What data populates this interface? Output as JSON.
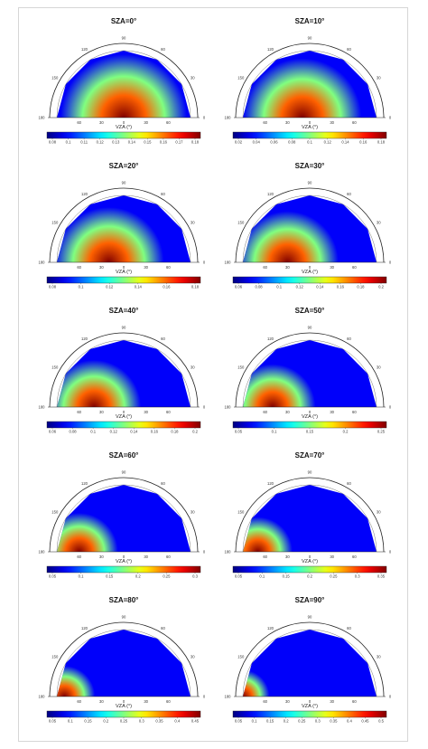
{
  "chart_data": [
    {
      "type": "heatmap",
      "title": "SZA=0°",
      "xlabel": "VZA (°)",
      "angle_ticks": [
        "90",
        "120",
        "60",
        "150",
        "30",
        "180",
        "0"
      ],
      "radial_ticks": [
        "60",
        "30",
        "0",
        "30",
        "60"
      ],
      "colorbar_ticks": [
        "0.08",
        "0.1",
        "0.11",
        "0.12",
        "0.13",
        "0.14",
        "0.15",
        "0.16",
        "0.17",
        "0.18"
      ],
      "colormap": "jet",
      "hotspot_vza": 0,
      "hotspot_side": "left"
    },
    {
      "type": "heatmap",
      "title": "SZA=10°",
      "xlabel": "VZA (°)",
      "angle_ticks": [
        "90",
        "120",
        "60",
        "150",
        "30",
        "180",
        "0"
      ],
      "radial_ticks": [
        "60",
        "30",
        "0",
        "30",
        "60"
      ],
      "colorbar_ticks": [
        "0.02",
        "0.04",
        "0.06",
        "0.08",
        "0.1",
        "0.12",
        "0.14",
        "0.16",
        "0.18"
      ],
      "colormap": "jet",
      "hotspot_vza": 10,
      "hotspot_side": "left"
    },
    {
      "type": "heatmap",
      "title": "SZA=20°",
      "xlabel": "VZA (°)",
      "angle_ticks": [
        "90",
        "120",
        "60",
        "150",
        "30",
        "180",
        "0"
      ],
      "radial_ticks": [
        "60",
        "30",
        "0",
        "30",
        "60"
      ],
      "colorbar_ticks": [
        "0.08",
        "0.1",
        "0.12",
        "0.14",
        "0.16",
        "0.18"
      ],
      "colormap": "jet",
      "hotspot_vza": 20,
      "hotspot_side": "left"
    },
    {
      "type": "heatmap",
      "title": "SZA=30°",
      "xlabel": "VZA (°)",
      "angle_ticks": [
        "90",
        "120",
        "60",
        "150",
        "30",
        "180",
        "0"
      ],
      "radial_ticks": [
        "60",
        "30",
        "0",
        "30",
        "60"
      ],
      "colorbar_ticks": [
        "0.06",
        "0.08",
        "0.1",
        "0.12",
        "0.14",
        "0.16",
        "0.18",
        "0.2"
      ],
      "colormap": "jet",
      "hotspot_vza": 30,
      "hotspot_side": "left"
    },
    {
      "type": "heatmap",
      "title": "SZA=40°",
      "xlabel": "VZA (°)",
      "angle_ticks": [
        "90",
        "120",
        "60",
        "150",
        "30",
        "180",
        "0"
      ],
      "radial_ticks": [
        "60",
        "30",
        "0",
        "30",
        "60"
      ],
      "colorbar_ticks": [
        "0.06",
        "0.08",
        "0.1",
        "0.12",
        "0.14",
        "0.16",
        "0.18",
        "0.2"
      ],
      "colormap": "jet",
      "hotspot_vza": 40,
      "hotspot_side": "left"
    },
    {
      "type": "heatmap",
      "title": "SZA=50°",
      "xlabel": "VZA (°)",
      "angle_ticks": [
        "90",
        "120",
        "60",
        "150",
        "30",
        "180",
        "0"
      ],
      "radial_ticks": [
        "60",
        "30",
        "0",
        "30",
        "60"
      ],
      "colorbar_ticks": [
        "0.05",
        "0.1",
        "0.15",
        "0.2",
        "0.25"
      ],
      "colormap": "jet",
      "hotspot_vza": 50,
      "hotspot_side": "left"
    },
    {
      "type": "heatmap",
      "title": "SZA=60°",
      "xlabel": "VZA (°)",
      "angle_ticks": [
        "90",
        "120",
        "60",
        "150",
        "30",
        "180",
        "0"
      ],
      "radial_ticks": [
        "60",
        "30",
        "0",
        "30",
        "60"
      ],
      "colorbar_ticks": [
        "0.05",
        "0.1",
        "0.15",
        "0.2",
        "0.25",
        "0.3"
      ],
      "colormap": "jet",
      "hotspot_vza": 60,
      "hotspot_side": "left"
    },
    {
      "type": "heatmap",
      "title": "SZA=70°",
      "xlabel": "VZA (°)",
      "angle_ticks": [
        "90",
        "120",
        "60",
        "150",
        "30",
        "180",
        "0"
      ],
      "radial_ticks": [
        "60",
        "30",
        "0",
        "30",
        "60"
      ],
      "colorbar_ticks": [
        "0.05",
        "0.1",
        "0.15",
        "0.2",
        "0.25",
        "0.3",
        "0.35"
      ],
      "colormap": "jet",
      "hotspot_vza": 70,
      "hotspot_side": "left"
    },
    {
      "type": "heatmap",
      "title": "SZA=80°",
      "xlabel": "VZA (°)",
      "angle_ticks": [
        "90",
        "120",
        "60",
        "150",
        "30",
        "180",
        "0"
      ],
      "radial_ticks": [
        "60",
        "30",
        "0",
        "30",
        "60"
      ],
      "colorbar_ticks": [
        "0.05",
        "0.1",
        "0.15",
        "0.2",
        "0.25",
        "0.3",
        "0.35",
        "0.4",
        "0.45"
      ],
      "colormap": "jet",
      "hotspot_vza": 80,
      "hotspot_side": "left"
    },
    {
      "type": "heatmap",
      "title": "SZA=90°",
      "xlabel": "VZA (°)",
      "angle_ticks": [
        "90",
        "120",
        "60",
        "150",
        "30",
        "180",
        "0"
      ],
      "radial_ticks": [
        "60",
        "30",
        "0",
        "30",
        "60"
      ],
      "colorbar_ticks": [
        "0.05",
        "0.1",
        "0.15",
        "0.2",
        "0.25",
        "0.3",
        "0.35",
        "0.4",
        "0.45",
        "0.5"
      ],
      "colormap": "jet",
      "hotspot_vza": 90,
      "hotspot_side": "left"
    }
  ]
}
